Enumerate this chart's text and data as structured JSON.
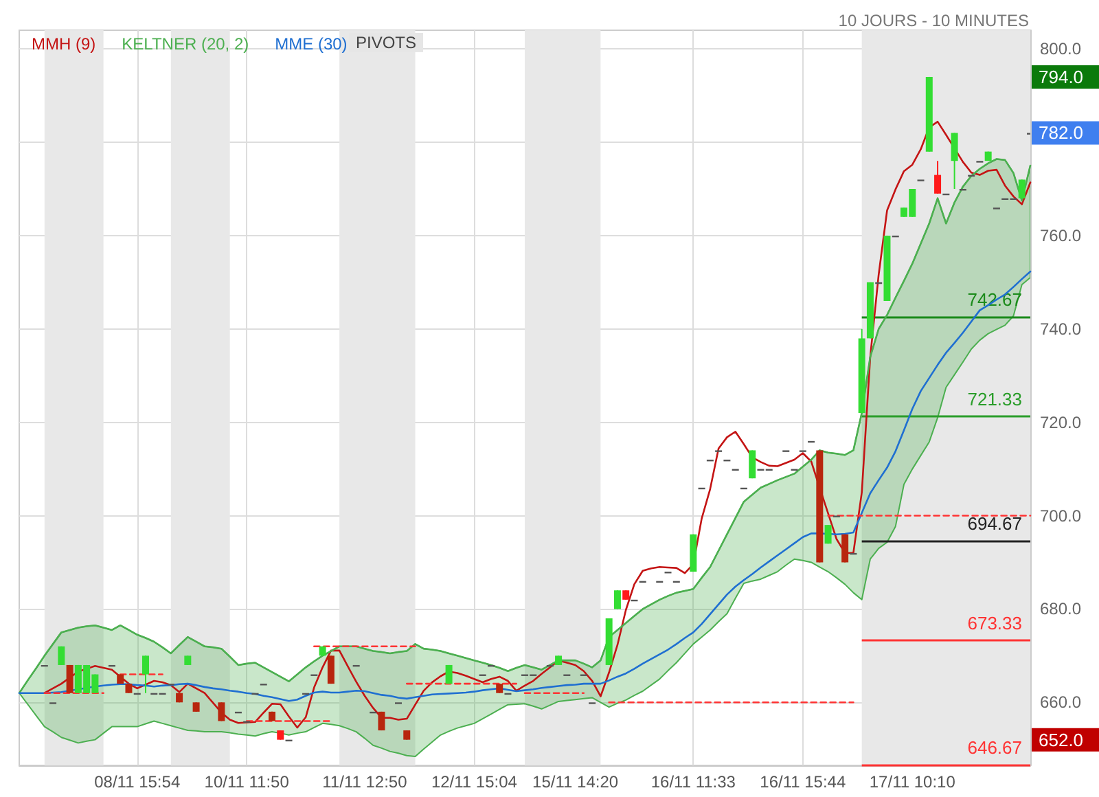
{
  "chart_data": {
    "type": "candlestick",
    "subtitle": "10 JOURS - 10 MINUTES",
    "categories": [
      null,
      null,
      null,
      null,
      null,
      null,
      null,
      null,
      null,
      null,
      null,
      null,
      null,
      null,
      "08/11 15:54",
      null,
      null,
      null,
      null,
      null,
      null,
      null,
      null,
      null,
      null,
      null,
      null,
      "10/11 11:50",
      null,
      null,
      null,
      null,
      null,
      null,
      null,
      null,
      null,
      null,
      null,
      null,
      null,
      "11/11 12:50",
      null,
      null,
      null,
      null,
      null,
      null,
      null,
      null,
      null,
      null,
      null,
      null,
      "12/11 15:04",
      null,
      null,
      null,
      null,
      null,
      null,
      null,
      null,
      null,
      null,
      null,
      "15/11 14:20",
      null,
      null,
      null,
      null,
      null,
      null,
      null,
      null,
      null,
      null,
      null,
      null,
      null,
      "16/11 11:33",
      null,
      null,
      null,
      null,
      null,
      null,
      null,
      null,
      null,
      null,
      null,
      null,
      "16/11 15:44",
      null,
      null,
      null,
      null,
      null,
      null,
      null,
      null,
      null,
      null,
      null,
      null,
      "17/11 10:10",
      null,
      null,
      null,
      null,
      null,
      null,
      null,
      null,
      null,
      null,
      null,
      null,
      null,
      null
    ],
    "ohlc": [
      null,
      null,
      null,
      [
        668,
        668,
        668,
        668
      ],
      [
        660,
        660,
        660,
        660
      ],
      [
        668,
        672,
        668,
        672
      ],
      [
        668,
        668,
        662,
        662
      ],
      [
        662,
        668,
        662,
        668
      ],
      [
        662,
        668,
        662,
        668
      ],
      [
        662,
        666,
        662,
        666
      ],
      null,
      [
        668,
        668,
        668,
        668
      ],
      [
        666,
        666,
        664,
        664
      ],
      [
        664,
        664,
        662,
        662
      ],
      [
        662,
        662,
        662,
        662
      ],
      [
        666,
        670,
        662,
        670
      ],
      [
        662,
        662,
        662,
        662
      ],
      [
        662,
        662,
        662,
        662
      ],
      [
        664,
        664,
        664,
        664
      ],
      [
        662,
        662,
        660,
        660
      ],
      [
        668,
        670,
        668,
        670
      ],
      [
        660,
        660,
        658,
        658
      ],
      null,
      null,
      [
        660,
        660,
        656,
        656
      ],
      null,
      [
        658,
        658,
        658,
        658
      ],
      [
        656,
        656,
        656,
        656
      ],
      [
        662,
        662,
        662,
        662
      ],
      [
        664,
        664,
        664,
        664
      ],
      [
        658,
        658,
        656,
        656
      ],
      [
        654,
        654,
        652,
        652
      ],
      [
        652,
        652,
        652,
        652
      ],
      null,
      [
        662,
        662,
        662,
        662
      ],
      [
        666,
        666,
        666,
        666
      ],
      [
        670,
        672,
        670,
        672
      ],
      [
        670,
        670,
        664,
        664
      ],
      null,
      null,
      [
        668,
        668,
        668,
        668
      ],
      null,
      [
        658,
        658,
        658,
        658
      ],
      [
        658,
        658,
        654,
        654
      ],
      null,
      [
        660,
        660,
        660,
        660
      ],
      [
        654,
        654,
        652,
        652
      ],
      null,
      null,
      null,
      null,
      [
        664,
        668,
        664,
        668
      ],
      null,
      null,
      null,
      [
        666,
        666,
        666,
        666
      ],
      [
        668,
        668,
        668,
        668
      ],
      [
        664,
        664,
        662,
        662
      ],
      [
        662,
        662,
        662,
        662
      ],
      null,
      [
        666,
        666,
        666,
        666
      ],
      [
        666,
        666,
        666,
        666
      ],
      null,
      [
        668,
        668,
        668,
        668
      ],
      [
        668,
        670,
        668,
        670
      ],
      [
        666,
        666,
        666,
        666
      ],
      null,
      [
        666,
        666,
        666,
        666
      ],
      [
        660,
        660,
        660,
        660
      ],
      null,
      [
        668,
        678,
        668,
        678
      ],
      [
        680,
        684,
        680,
        684
      ],
      [
        684,
        684,
        682,
        682
      ],
      [
        682,
        682,
        682,
        682
      ],
      [
        686,
        686,
        686,
        686
      ],
      null,
      [
        686,
        686,
        686,
        686
      ],
      [
        688,
        688,
        688,
        688
      ],
      [
        686,
        686,
        686,
        686
      ],
      null,
      [
        688,
        696,
        688,
        696
      ],
      [
        706,
        706,
        706,
        706
      ],
      [
        712,
        712,
        712,
        712
      ],
      [
        714,
        714,
        714,
        714
      ],
      [
        712,
        712,
        712,
        712
      ],
      [
        710,
        710,
        710,
        710
      ],
      [
        706,
        706,
        706,
        706
      ],
      [
        708,
        714,
        708,
        714
      ],
      [
        710,
        710,
        710,
        710
      ],
      [
        710,
        710,
        710,
        710
      ],
      null,
      [
        714,
        714,
        714,
        714
      ],
      [
        710,
        710,
        710,
        710
      ],
      [
        714,
        714,
        714,
        714
      ],
      [
        716,
        716,
        716,
        716
      ],
      [
        714,
        714,
        690,
        690
      ],
      [
        694,
        698,
        694,
        698
      ],
      [
        700,
        700,
        700,
        700
      ],
      [
        696,
        696,
        690,
        690
      ],
      [
        692,
        692,
        692,
        692
      ],
      [
        722,
        740,
        722,
        738
      ],
      [
        738,
        750,
        738,
        750
      ],
      [
        750,
        750,
        750,
        750
      ],
      [
        746,
        760,
        746,
        760
      ],
      [
        760,
        760,
        760,
        760
      ],
      [
        764,
        766,
        764,
        766
      ],
      [
        764,
        770,
        764,
        770
      ],
      [
        772,
        772,
        772,
        772
      ],
      [
        778,
        794,
        778,
        794
      ],
      [
        773,
        776,
        769,
        769
      ],
      [
        769,
        769,
        769,
        769
      ],
      [
        776,
        782,
        770,
        782
      ],
      [
        770,
        770,
        770,
        770
      ],
      [
        773,
        773,
        773,
        773
      ],
      [
        776,
        776,
        776,
        776
      ],
      [
        776,
        778,
        776,
        778
      ],
      [
        766,
        766,
        766,
        766
      ],
      [
        768,
        768,
        768,
        768
      ],
      [
        768,
        768,
        768,
        768
      ],
      [
        768,
        772,
        768,
        772
      ],
      [
        782,
        782,
        782,
        782
      ]
    ],
    "colors": [
      null,
      null,
      null,
      "#555555",
      "#555555",
      "#33dd33",
      "#b8260e",
      "#33dd33",
      "#33dd33",
      "#33dd33",
      null,
      "#555555",
      "#b8260e",
      "#b8260e",
      "#555555",
      "#33dd33",
      "#555555",
      "#555555",
      "#555555",
      "#b8260e",
      "#33dd33",
      "#b8260e",
      null,
      null,
      "#b8260e",
      null,
      "#555555",
      "#555555",
      "#555555",
      "#555555",
      "#b8260e",
      "#ff1a1a",
      "#555555",
      null,
      "#555555",
      "#555555",
      "#33dd33",
      "#b8260e",
      null,
      null,
      "#555555",
      null,
      "#555555",
      "#b8260e",
      null,
      "#555555",
      "#b8260e",
      null,
      null,
      null,
      null,
      "#33dd33",
      null,
      null,
      null,
      "#555555",
      "#555555",
      "#b8260e",
      "#555555",
      null,
      "#555555",
      "#555555",
      null,
      "#555555",
      "#33dd33",
      "#555555",
      null,
      "#555555",
      "#555555",
      null,
      "#33dd33",
      "#33dd33",
      "#ff1a1a",
      "#555555",
      "#555555",
      null,
      "#555555",
      "#555555",
      "#555555",
      null,
      "#33dd33",
      "#555555",
      "#555555",
      "#555555",
      "#555555",
      "#555555",
      "#555555",
      "#33dd33",
      "#555555",
      "#555555",
      null,
      "#555555",
      "#555555",
      "#555555",
      "#555555",
      "#b8260e",
      "#33dd33",
      "#555555",
      "#b8260e",
      "#555555",
      "#33dd33",
      "#33dd33",
      "#555555",
      "#33dd33",
      "#555555",
      "#33dd33",
      "#33dd33",
      "#555555",
      "#33dd33",
      "#ff1a1a",
      "#555555",
      "#33dd33",
      "#555555",
      "#555555",
      "#555555",
      "#33dd33",
      "#555555",
      "#555555",
      "#555555",
      "#33dd33",
      "#555555"
    ],
    "series": [
      {
        "name": "MMH (9)",
        "type": "line",
        "color": "#c41414",
        "values": [
          null,
          null,
          null,
          662,
          663,
          664,
          665.3,
          666.6,
          667.2,
          667.8,
          667.4,
          667,
          665.5,
          664,
          663,
          663.8,
          664.6,
          664.3,
          663.7,
          662.2,
          664,
          663,
          662,
          659.9,
          657.8,
          656.3,
          655.6,
          655.7,
          655.8,
          657.8,
          659.7,
          659.6,
          657,
          654.6,
          656.8,
          663.2,
          667.5,
          671.1,
          671.1,
          667.7,
          664.4,
          661.4,
          658.8,
          656.7,
          656.7,
          656.3,
          656.5,
          659.5,
          662.5,
          664.3,
          665.6,
          666.6,
          666.3,
          665.7,
          665,
          664.3,
          665,
          665.5,
          664.6,
          662.5,
          663.6,
          664.6,
          666.1,
          667.5,
          669,
          668.5,
          668,
          666.7,
          664.6,
          661.3,
          666.4,
          672.3,
          679.8,
          685.3,
          688.2,
          688.7,
          689,
          688.9,
          688.8,
          687.7,
          689.6,
          699.4,
          705.7,
          714.4,
          716.8,
          718,
          715.3,
          712.5,
          711.5,
          710.7,
          710.6,
          711.3,
          712,
          713.4,
          711.6,
          706,
          700.5,
          695,
          692,
          692,
          705,
          734,
          751.6,
          765.4,
          769.9,
          773.8,
          775.2,
          778.5,
          783.2,
          784.4,
          781.6,
          778.7,
          775.8,
          773.5,
          773,
          773.9,
          774.1,
          770.7,
          768.4,
          766.7,
          771.4
        ]
      },
      {
        "name": "KELTNER (20, 2)",
        "type": "line",
        "color": "#4caf50",
        "values": [
          662,
          664.7,
          667.3,
          670,
          672.5,
          675,
          675.5,
          676,
          676.3,
          676.5,
          676,
          675.5,
          676.5,
          675.5,
          674.5,
          673.8,
          673,
          671.8,
          670.5,
          672.3,
          674,
          673,
          672,
          671.8,
          671.5,
          669.8,
          668,
          668.3,
          668.5,
          667.5,
          666.5,
          665.5,
          664.5,
          666,
          667.5,
          668.8,
          670,
          671,
          672,
          672,
          672,
          671.5,
          671,
          670.8,
          670.5,
          670.8,
          671,
          672.5,
          671.5,
          671.3,
          671,
          670.5,
          670,
          669.5,
          669,
          668.5,
          668,
          667.4,
          666.7,
          667.4,
          668,
          667.5,
          667,
          668,
          669,
          669,
          669,
          668.3,
          667.5,
          669,
          674,
          675.5,
          677,
          678.5,
          680,
          681,
          682,
          682.8,
          683.5,
          683.9,
          684.3,
          686.7,
          689,
          692.5,
          696,
          699.5,
          703,
          704.5,
          706,
          706.8,
          707.6,
          708.3,
          709,
          710.5,
          712,
          714,
          713.5,
          713.3,
          713,
          714,
          722,
          734,
          740,
          743,
          746.7,
          750.3,
          754,
          758.3,
          762.6,
          768,
          762.6,
          767.1,
          770.5,
          772.8,
          774.3,
          775.5,
          776.4,
          776.2,
          773.4,
          767.5,
          775
        ],
        "upper": [
          662,
          664.7,
          667.3,
          670,
          672.5,
          675,
          675.5,
          676,
          676.3,
          676.5,
          676,
          675.5,
          676.5,
          675.5,
          674.5,
          673.8,
          673,
          671.8,
          670.5,
          672.3,
          674,
          673,
          672,
          671.8,
          671.5,
          669.8,
          668,
          668.3,
          668.5,
          667.5,
          666.5,
          665.5,
          664.5,
          666,
          667.5,
          668.8,
          670,
          671,
          672,
          672,
          672,
          671.5,
          671,
          670.8,
          670.5,
          670.8,
          671,
          672.5,
          671.5,
          671.3,
          671,
          670.5,
          670,
          669.5,
          669,
          668.5,
          668,
          667.4,
          666.7,
          667.4,
          668,
          667.5,
          667,
          668,
          669,
          669,
          669,
          668.3,
          667.5,
          669,
          674,
          675.5,
          677,
          678.5,
          680,
          681,
          682,
          682.8,
          683.5,
          683.9,
          684.3,
          686.7,
          689,
          692.5,
          696,
          699.5,
          703,
          704.5,
          706,
          706.8,
          707.6,
          708.3,
          709,
          710.5,
          712,
          714,
          713.5,
          713.3,
          713,
          714,
          722,
          734,
          740,
          743,
          746.7,
          750.3,
          754,
          758.3,
          762.6,
          768,
          762.6,
          767.1,
          770.5,
          772.8,
          774.3,
          775.5,
          776.4,
          776.2,
          773.4,
          767.5,
          775
        ],
        "lower": [
          662,
          659.6,
          657.2,
          654.8,
          653.7,
          652.5,
          651.9,
          651.3,
          651.7,
          652,
          653.4,
          654.8,
          654.8,
          654.8,
          654.8,
          655.4,
          656,
          655.5,
          655,
          654.5,
          654,
          653.9,
          653.7,
          653.7,
          653.7,
          653.5,
          653.2,
          653,
          652.8,
          653.3,
          653.7,
          653.4,
          653,
          653.4,
          653.7,
          654.6,
          655.5,
          655.3,
          655,
          654.4,
          653.7,
          652.3,
          650.8,
          650.2,
          649.5,
          649.1,
          648.6,
          648.4,
          650,
          651.5,
          653,
          653.8,
          654.5,
          655,
          655.5,
          656.5,
          657.5,
          658.5,
          659.5,
          659.6,
          659.7,
          659.2,
          658.6,
          659.4,
          660.2,
          660.4,
          660.6,
          660.8,
          661,
          660,
          659,
          659.8,
          660.5,
          661.5,
          662.4,
          663.7,
          665,
          666.8,
          668.5,
          670.5,
          672.5,
          674,
          675.5,
          677.3,
          679,
          682.3,
          685.5,
          686,
          686.4,
          687.2,
          688,
          689.4,
          690.7,
          690.4,
          690,
          689,
          688,
          686.7,
          685.3,
          683.5,
          682,
          690.7,
          693,
          694.3,
          697.7,
          706.7,
          710,
          712.9,
          715.8,
          721,
          727.5,
          730.2,
          732.9,
          735.7,
          737.6,
          739,
          739.9,
          740.8,
          742.8,
          749.5,
          751
        ]
      },
      {
        "name": "MME (30)",
        "type": "line",
        "color": "#1f6fd1",
        "values": [
          662,
          662,
          662,
          662,
          662.1,
          662.2,
          662.5,
          662.8,
          663.1,
          663.4,
          663.6,
          663.8,
          663.9,
          663.9,
          663.7,
          663.6,
          663.4,
          663.6,
          663.7,
          663.9,
          664,
          663.7,
          663.3,
          663,
          662.8,
          662.5,
          662.3,
          662,
          661.8,
          661.4,
          661.1,
          660.7,
          660.3,
          660.6,
          661.4,
          662.1,
          662.3,
          662.1,
          662.1,
          662.3,
          662.5,
          662.4,
          662,
          661.6,
          661.4,
          661,
          660.8,
          661.1,
          661.4,
          661.7,
          661.8,
          661.9,
          662,
          662.1,
          662.3,
          662.6,
          662.8,
          663,
          662.7,
          662.4,
          662.6,
          662.8,
          663.1,
          663.3,
          663.5,
          663.7,
          663.8,
          664,
          664,
          664,
          664.7,
          665.5,
          666.2,
          667.2,
          668.3,
          669.3,
          670.3,
          671.3,
          672.5,
          673.8,
          675,
          676.8,
          678.9,
          681,
          683.1,
          684.8,
          686.2,
          687.5,
          688.9,
          690.2,
          691.5,
          692.8,
          694.1,
          695.4,
          696.2,
          696.2,
          696.1,
          696,
          696.1,
          696.4,
          700.6,
          704.8,
          707.6,
          710.3,
          713.8,
          718.3,
          722.9,
          726.7,
          729.5,
          732.3,
          734.9,
          737,
          739.2,
          741.6,
          744,
          745.1,
          746.3,
          747.4,
          749,
          750.7,
          752.3
        ]
      },
      {
        "type": "line",
        "color": "#ff3333",
        "line_style": "dashed",
        "values": [
          null,
          null,
          null,
          662,
          662,
          662,
          662,
          662,
          662,
          662,
          662,
          null,
          null,
          null,
          null,
          null,
          null,
          null,
          null,
          null,
          null,
          null,
          null,
          null,
          null,
          null,
          null,
          null,
          null,
          null,
          null,
          null,
          null,
          null,
          null,
          null,
          null,
          null,
          null,
          null,
          null,
          null,
          null,
          null,
          null,
          null,
          null,
          null,
          null,
          null,
          null,
          null,
          null,
          null,
          null,
          null,
          null,
          null,
          null,
          null,
          null,
          null,
          null,
          null,
          null,
          null,
          null,
          null,
          null,
          null,
          null,
          null,
          null,
          null,
          null,
          null,
          null,
          null,
          null,
          null,
          null,
          null,
          null,
          null,
          null,
          null,
          null,
          null,
          null,
          null,
          null,
          null,
          null,
          null,
          null,
          null,
          null,
          null,
          null,
          null,
          null,
          null,
          null,
          null,
          null,
          null,
          null,
          null,
          null,
          null,
          null,
          null,
          null,
          null,
          null,
          null,
          null,
          null,
          null,
          null,
          null
        ]
      },
      {
        "type": "line",
        "color": "#ff3333",
        "line_style": "dashed",
        "values": [
          null,
          null,
          null,
          null,
          null,
          null,
          null,
          null,
          null,
          null,
          null,
          null,
          666,
          666,
          666,
          666,
          666,
          666,
          null,
          null,
          null,
          null,
          null,
          null,
          null,
          null,
          null,
          null,
          null,
          null,
          null,
          null,
          null,
          null,
          null,
          null,
          null,
          null,
          null,
          null,
          null,
          null,
          null,
          null,
          null,
          null,
          null,
          null,
          null,
          null,
          null,
          null,
          null,
          null,
          null,
          null,
          null,
          null,
          null,
          null,
          null,
          null,
          null,
          null,
          null,
          null,
          null,
          null,
          null,
          null,
          null,
          null,
          null,
          null,
          null,
          null,
          null,
          null,
          null,
          null,
          null,
          null,
          null,
          null,
          null,
          null,
          null,
          null,
          null,
          null,
          null,
          null,
          null,
          null,
          null,
          null,
          null,
          null,
          null,
          null,
          null,
          null,
          null,
          null,
          null,
          null,
          null,
          null,
          null,
          null,
          null,
          null,
          null,
          null,
          null,
          null,
          null,
          null,
          null,
          null,
          null
        ]
      },
      {
        "type": "line",
        "color": "#ff3333",
        "line_style": "dashed",
        "values": [
          null,
          null,
          null,
          null,
          null,
          null,
          null,
          null,
          null,
          null,
          null,
          null,
          null,
          null,
          null,
          null,
          null,
          null,
          null,
          null,
          null,
          null,
          null,
          null,
          null,
          null,
          null,
          656,
          656,
          656,
          656,
          656,
          656,
          656,
          656,
          656,
          656,
          656,
          null,
          null,
          null,
          null,
          null,
          null,
          null,
          null,
          null,
          null,
          null,
          null,
          null,
          null,
          null,
          null,
          null,
          null,
          null,
          null,
          null,
          null,
          null,
          null,
          null,
          null,
          null,
          null,
          null,
          null,
          null,
          null,
          null,
          null,
          null,
          null,
          null,
          null,
          null,
          null,
          null,
          null,
          null,
          null,
          null,
          null,
          null,
          null,
          null,
          null,
          null,
          null,
          null,
          null,
          null,
          null,
          null,
          null,
          null,
          null,
          null,
          null,
          null,
          null,
          null,
          null,
          null,
          null,
          null,
          null,
          null,
          null,
          null,
          null,
          null,
          null,
          null,
          null,
          null,
          null,
          null,
          null,
          null
        ]
      },
      {
        "type": "line",
        "color": "#ff3333",
        "line_style": "dashed",
        "values": [
          null,
          null,
          null,
          null,
          null,
          null,
          null,
          null,
          null,
          null,
          null,
          null,
          null,
          null,
          null,
          null,
          null,
          null,
          null,
          null,
          null,
          null,
          null,
          null,
          null,
          null,
          null,
          null,
          null,
          null,
          null,
          null,
          null,
          null,
          null,
          672,
          672,
          672,
          672,
          672,
          672,
          672,
          672,
          672,
          672,
          672,
          672,
          672,
          null,
          null,
          null,
          null,
          null,
          null,
          null,
          null,
          null,
          null,
          null,
          null,
          null,
          null,
          null,
          null,
          null,
          null,
          null,
          null,
          null,
          null,
          null,
          null,
          null,
          null,
          null,
          null,
          null,
          null,
          null,
          null,
          null,
          null,
          null,
          null,
          null,
          null,
          null,
          null,
          null,
          null,
          null,
          null,
          null,
          null,
          null,
          null,
          null,
          null,
          null,
          null,
          null,
          null,
          null,
          null,
          null,
          null,
          null,
          null,
          null,
          null,
          null,
          null,
          null,
          null,
          null,
          null,
          null,
          null,
          null,
          null,
          null
        ]
      },
      {
        "type": "line",
        "color": "#ff3333",
        "line_style": "dashed",
        "values": [
          null,
          null,
          null,
          null,
          null,
          null,
          null,
          null,
          null,
          null,
          null,
          null,
          null,
          null,
          null,
          null,
          null,
          null,
          null,
          null,
          null,
          null,
          null,
          null,
          null,
          null,
          null,
          null,
          null,
          null,
          null,
          null,
          null,
          null,
          null,
          null,
          null,
          null,
          null,
          null,
          null,
          null,
          null,
          null,
          null,
          null,
          664,
          664,
          664,
          664,
          664,
          664,
          664,
          664,
          664,
          664,
          664,
          664,
          664,
          664,
          null,
          null,
          null,
          null,
          null,
          null,
          null,
          null,
          null,
          null,
          null,
          null,
          null,
          null,
          null,
          null,
          null,
          null,
          null,
          null,
          null,
          null,
          null,
          null,
          null,
          null,
          null,
          null,
          null,
          null,
          null,
          null,
          null,
          null,
          null,
          null,
          null,
          null,
          null,
          null,
          null,
          null,
          null,
          null,
          null,
          null,
          null,
          null,
          null,
          null,
          null,
          null,
          null,
          null,
          null,
          null,
          null,
          null,
          null,
          null,
          null
        ]
      },
      {
        "type": "line",
        "color": "#ff3333",
        "line_style": "dashed",
        "values": [
          null,
          null,
          null,
          null,
          null,
          null,
          null,
          null,
          null,
          null,
          null,
          null,
          null,
          null,
          null,
          null,
          null,
          null,
          null,
          null,
          null,
          null,
          null,
          null,
          null,
          null,
          null,
          null,
          null,
          null,
          null,
          null,
          null,
          null,
          null,
          null,
          null,
          null,
          null,
          null,
          null,
          null,
          null,
          null,
          null,
          null,
          null,
          null,
          null,
          null,
          null,
          null,
          null,
          null,
          null,
          null,
          null,
          null,
          null,
          null,
          662,
          662,
          662,
          662,
          662,
          662,
          662,
          662,
          null,
          null,
          null,
          null,
          null,
          null,
          null,
          null,
          null,
          null,
          null,
          null,
          null,
          null,
          null,
          null,
          null,
          null,
          null,
          null,
          null,
          null,
          null,
          null,
          null,
          null,
          null,
          null,
          null,
          null,
          null,
          null,
          null,
          null,
          null,
          null,
          null,
          null,
          null,
          null,
          null,
          null,
          null,
          null,
          null,
          null,
          null,
          null,
          null,
          null,
          null,
          null,
          null
        ]
      },
      {
        "type": "line",
        "color": "#ff3333",
        "line_style": "dashed",
        "values": [
          null,
          null,
          null,
          null,
          null,
          null,
          null,
          null,
          null,
          null,
          null,
          null,
          null,
          null,
          null,
          null,
          null,
          null,
          null,
          null,
          null,
          null,
          null,
          null,
          null,
          null,
          null,
          null,
          null,
          null,
          null,
          null,
          null,
          null,
          null,
          null,
          null,
          null,
          null,
          null,
          null,
          null,
          null,
          null,
          null,
          null,
          null,
          null,
          null,
          null,
          null,
          null,
          null,
          null,
          null,
          null,
          null,
          null,
          null,
          null,
          null,
          null,
          null,
          null,
          null,
          null,
          null,
          null,
          null,
          null,
          660,
          660,
          660,
          660,
          660,
          660,
          660,
          660,
          660,
          660,
          660,
          660,
          660,
          660,
          660,
          660,
          660,
          660,
          660,
          660,
          660,
          660,
          660,
          660,
          660,
          660,
          660,
          660,
          660,
          660,
          null,
          null,
          null,
          null,
          null,
          null,
          null,
          null,
          null,
          null,
          null,
          null,
          null,
          null,
          null,
          null,
          null,
          null,
          null,
          null,
          null
        ]
      },
      {
        "type": "line",
        "color": "#ff3333",
        "line_style": "dashed",
        "values": [
          null,
          null,
          null,
          null,
          null,
          null,
          null,
          null,
          null,
          null,
          null,
          null,
          null,
          null,
          null,
          null,
          null,
          null,
          null,
          null,
          null,
          null,
          null,
          null,
          null,
          null,
          null,
          null,
          null,
          null,
          null,
          null,
          null,
          null,
          null,
          null,
          null,
          null,
          null,
          null,
          null,
          null,
          null,
          null,
          null,
          null,
          null,
          null,
          null,
          null,
          null,
          null,
          null,
          null,
          null,
          null,
          null,
          null,
          null,
          null,
          null,
          null,
          null,
          null,
          null,
          null,
          null,
          null,
          null,
          null,
          null,
          null,
          null,
          null,
          null,
          null,
          null,
          null,
          null,
          null,
          null,
          null,
          null,
          null,
          null,
          null,
          null,
          null,
          null,
          null,
          null,
          null,
          null,
          null,
          null,
          null,
          700,
          700,
          700,
          700,
          700,
          700,
          700,
          700,
          700,
          700,
          700,
          700,
          700,
          700,
          700,
          700,
          700,
          700,
          700,
          700,
          700,
          700,
          700,
          700,
          700
        ]
      }
    ],
    "ylim": [
      646.5,
      804
    ],
    "yticks": [
      {
        "value": 660,
        "label": "660.0"
      },
      {
        "value": 680,
        "label": "680.0"
      },
      {
        "value": 700,
        "label": "700.0"
      },
      {
        "value": 720,
        "label": "720.0"
      },
      {
        "value": 740,
        "label": "740.0"
      },
      {
        "value": 760,
        "label": "760.0"
      },
      {
        "value": 780,
        "label": null
      },
      {
        "value": 800,
        "label": "800.0"
      }
    ],
    "grid": true,
    "legend": "top left",
    "marker": "none",
    "ref_lines": [
      {
        "axis": "y",
        "value": 742.67,
        "label": "742.67",
        "color": "#1a8a1a"
      },
      {
        "axis": "y",
        "value": 721.33,
        "label": "721.33",
        "color": "#2a9d2a"
      },
      {
        "axis": "y",
        "value": 694.67,
        "label": "694.67",
        "color": "#222222"
      },
      {
        "axis": "y",
        "value": 673.33,
        "label": "673.33",
        "color": "#ff3333"
      },
      {
        "axis": "y",
        "value": 646.67,
        "label": "646.67",
        "color": "#ff3333"
      }
    ],
    "annotations": [
      "PIVOTS",
      "794.0",
      "782.0",
      "652.0"
    ]
  }
}
